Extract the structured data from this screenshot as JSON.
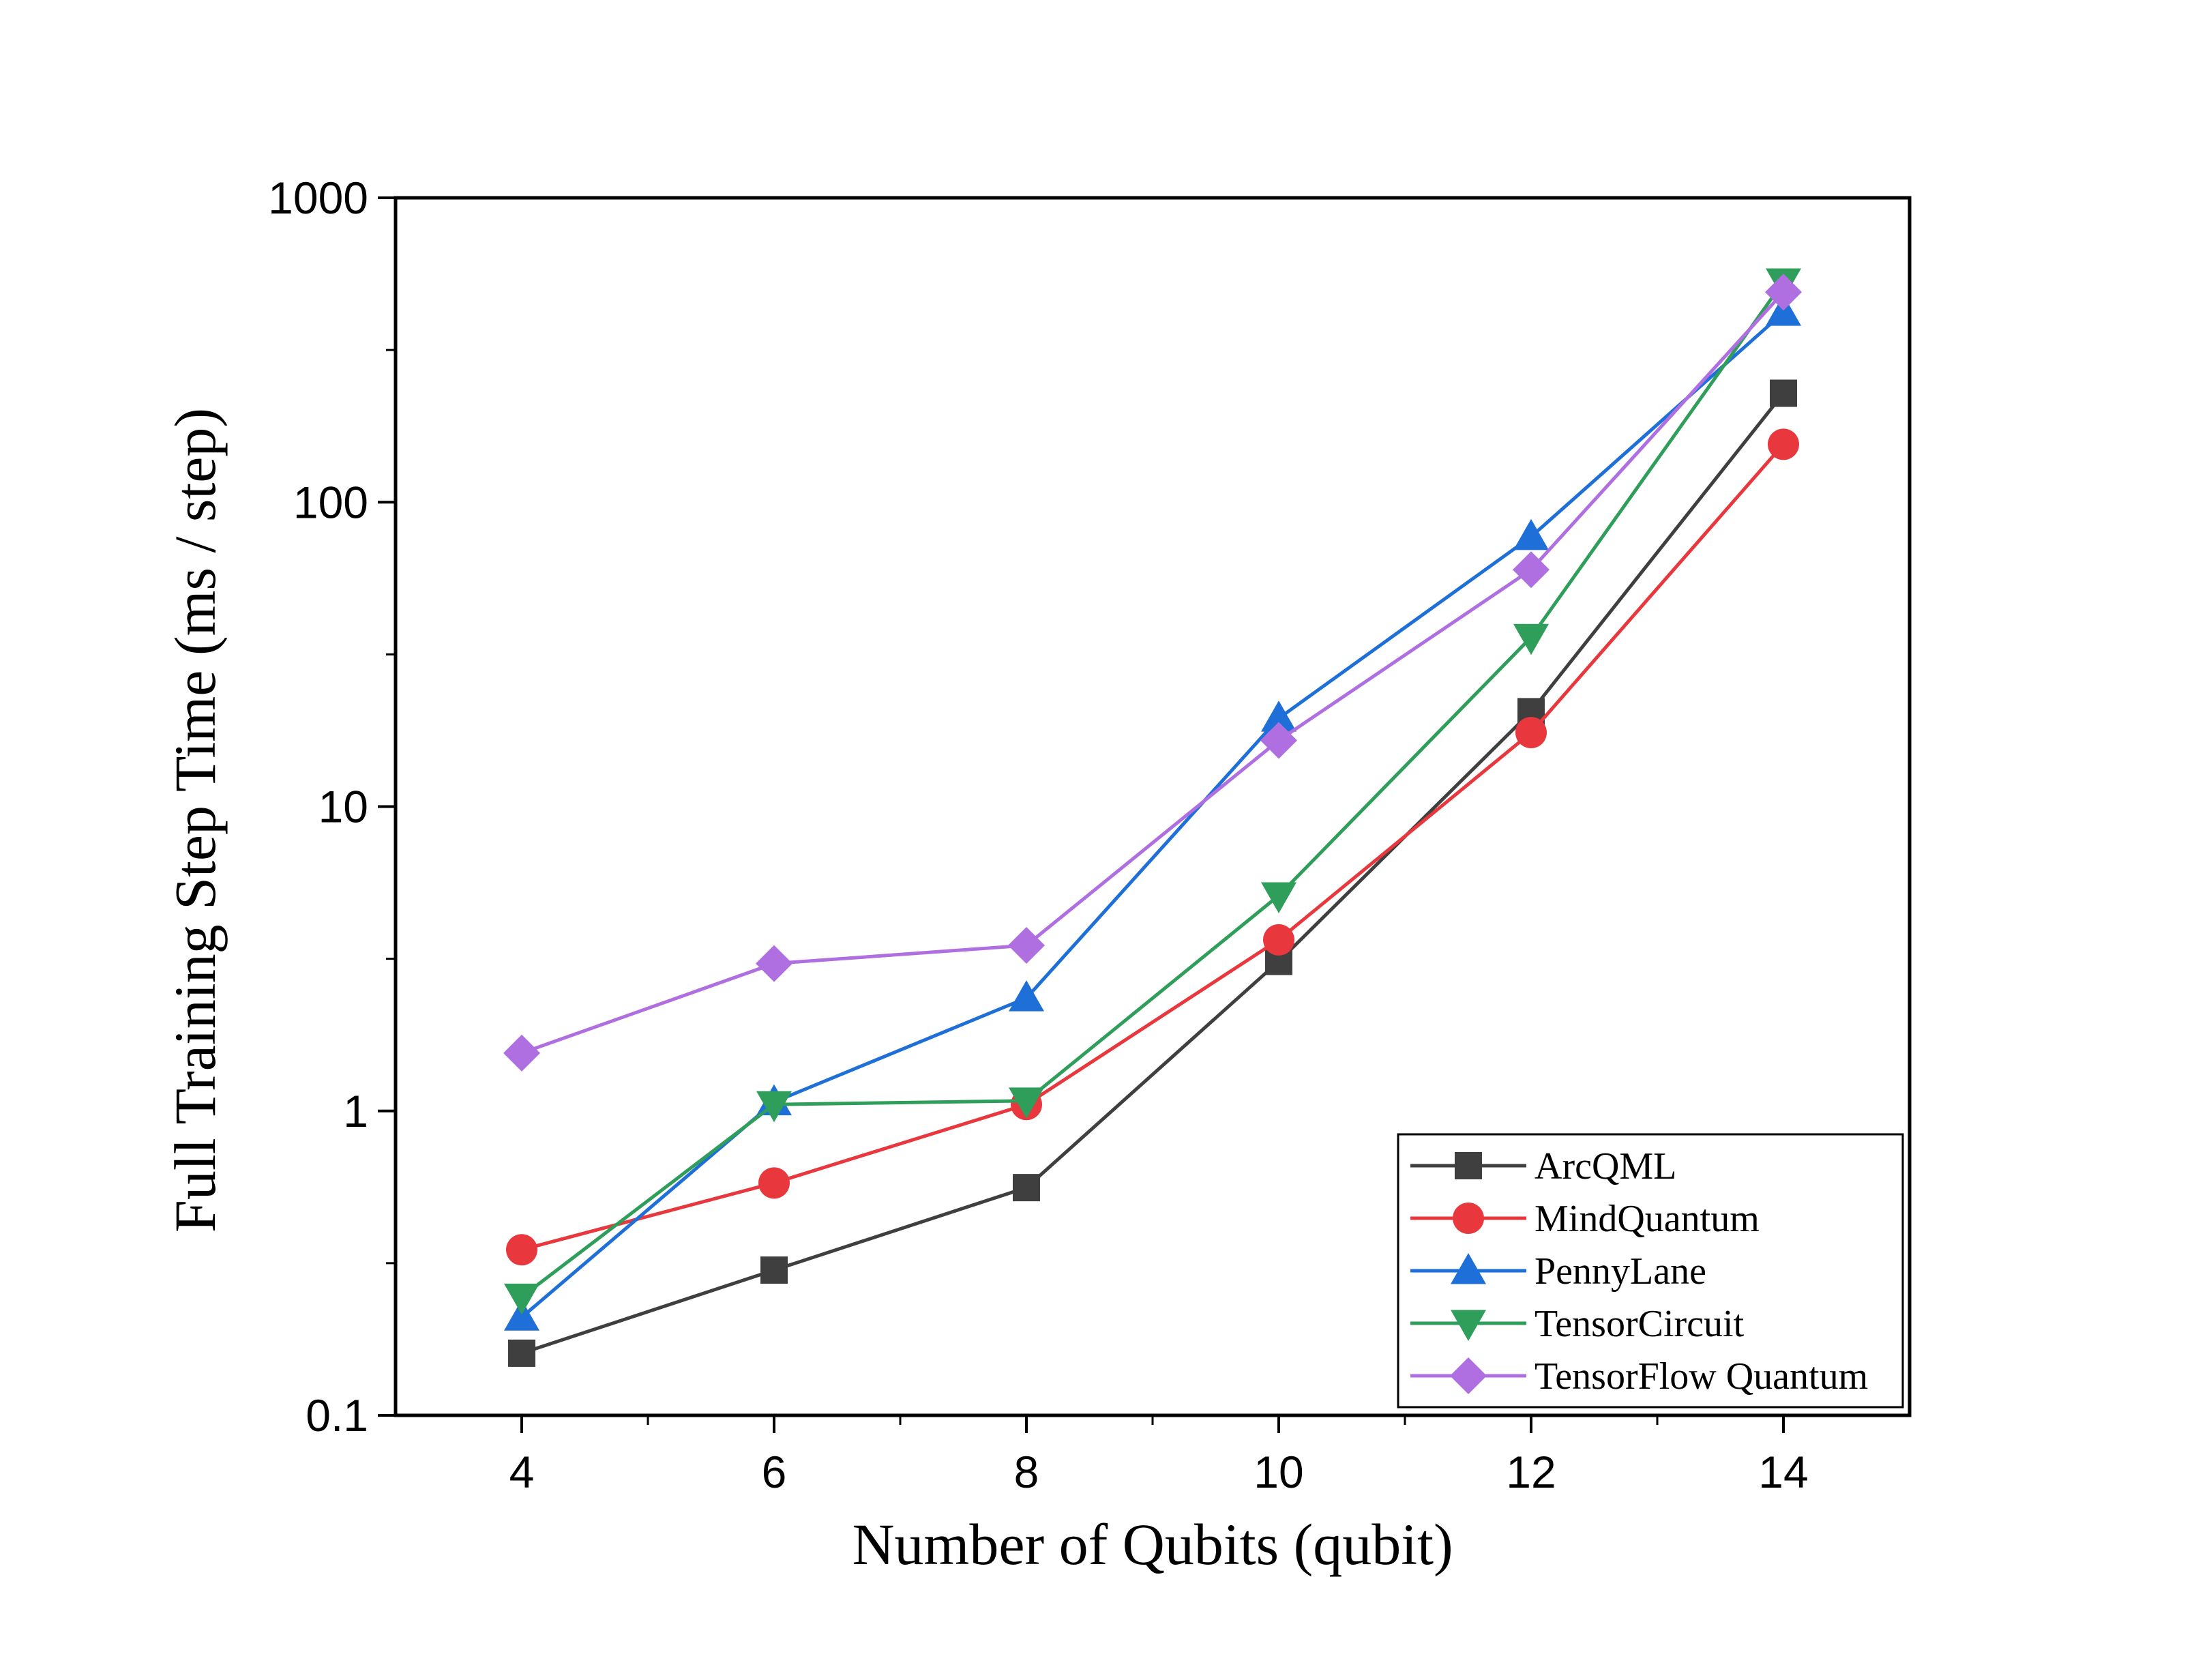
{
  "chart_data": {
    "type": "line",
    "title": "",
    "xlabel": "Number of Qubits (qubit)",
    "ylabel": "Full Training Step Time (ms / step)",
    "x": [
      4,
      6,
      8,
      10,
      12,
      14
    ],
    "xlim": [
      3,
      15
    ],
    "xticks": [
      4,
      6,
      8,
      10,
      12,
      14
    ],
    "yscale": "log",
    "ylim": [
      0.1,
      1000
    ],
    "yticks": [
      0.1,
      1,
      10,
      100,
      1000
    ],
    "ytick_labels": [
      "0.1",
      "1",
      "10",
      "100",
      "1000"
    ],
    "grid": false,
    "legend_position": "bottom-right",
    "series": [
      {
        "name": "ArcQML",
        "color": "#3f3f3f",
        "marker": "square",
        "values": [
          0.16,
          0.3,
          0.56,
          3.1,
          20.5,
          228
        ]
      },
      {
        "name": "MindQuantum",
        "color": "#e8383d",
        "marker": "circle",
        "values": [
          0.35,
          0.58,
          1.05,
          3.65,
          17.5,
          155
        ]
      },
      {
        "name": "PennyLane",
        "color": "#1f6fd9",
        "marker": "triangle-up",
        "values": [
          0.21,
          1.07,
          2.35,
          19.5,
          77,
          420
        ]
      },
      {
        "name": "TensorCircuit",
        "color": "#2e9e5a",
        "marker": "triangle-down",
        "values": [
          0.245,
          1.05,
          1.08,
          5.1,
          36,
          530
        ]
      },
      {
        "name": "TensorFlow Quantum",
        "color": "#b06fe0",
        "marker": "diamond",
        "values": [
          1.55,
          3.05,
          3.5,
          16.5,
          60,
          490
        ]
      }
    ]
  }
}
